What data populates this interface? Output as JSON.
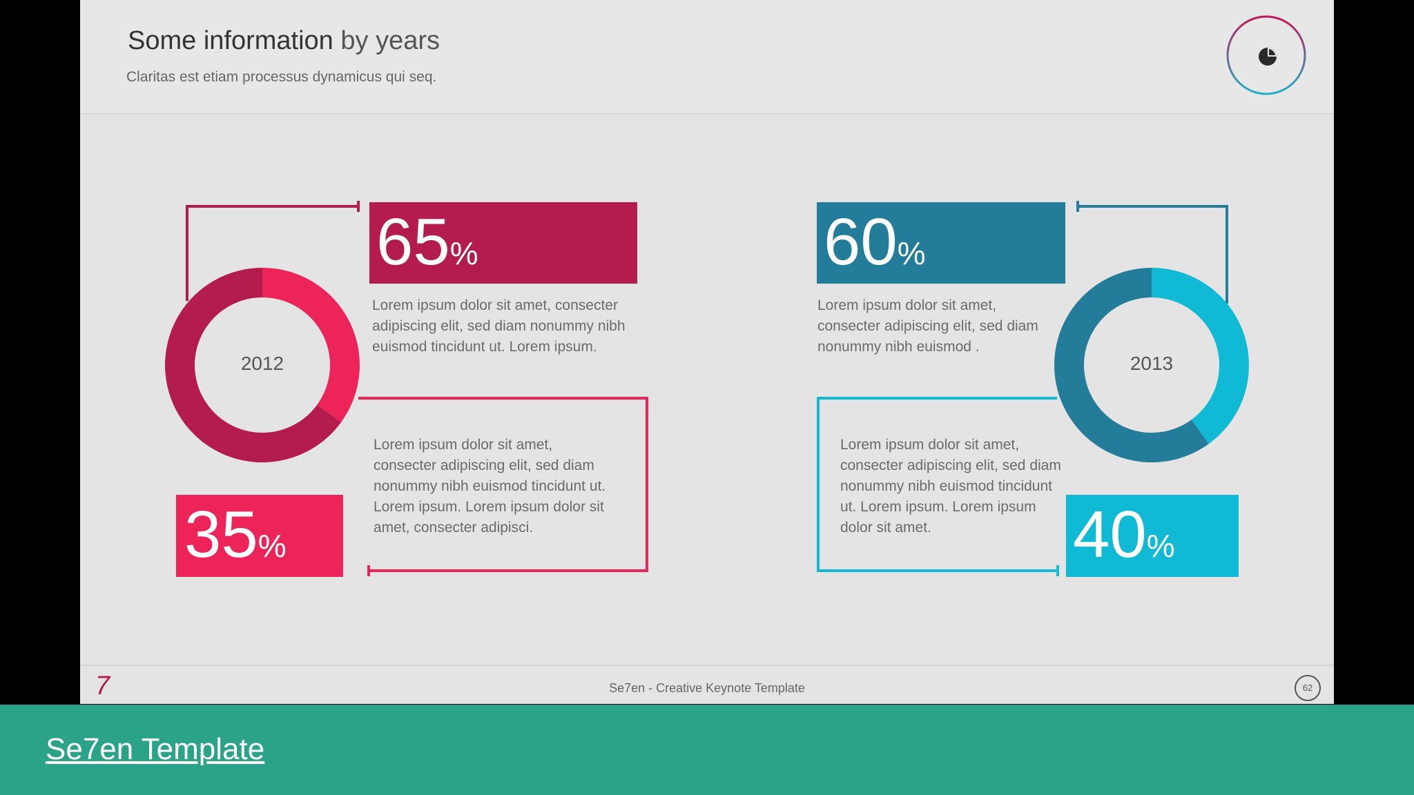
{
  "slide": {
    "title_bold": "Some information",
    "title_light": "by years",
    "subtitle": "Claritas est etiam processus dynamicus qui seq."
  },
  "left": {
    "year": "2012",
    "big_value": "65",
    "small_value": "35",
    "unit": "%",
    "text_top": "Lorem ipsum dolor sit amet, consecter adipiscing elit, sed diam nonummy nibh euismod tincidunt ut. Lorem ipsum.",
    "text_bottom": "Lorem ipsum dolor sit amet, consecter adipiscing elit, sed diam nonummy nibh euismod tincidunt ut. Lorem ipsum. Lorem ipsum dolor sit amet, consecter adipisci.",
    "colors": {
      "major": "#b31c4c",
      "minor": "#ec2459"
    }
  },
  "right": {
    "year": "2013",
    "big_value": "60",
    "small_value": "40",
    "unit": "%",
    "text_top": "Lorem ipsum dolor sit amet, consecter adipiscing elit, sed diam nonummy nibh euismod .",
    "text_bottom": "Lorem ipsum dolor sit amet, consecter adipiscing elit, sed diam nonummy nibh euismod tincidunt ut. Lorem ipsum. Lorem ipsum dolor sit amet.",
    "colors": {
      "major": "#237d9a",
      "minor": "#10b9d4"
    }
  },
  "footer": {
    "logo": "7",
    "text": "Se7en - Creative Keynote Template",
    "page": "62"
  },
  "banner": {
    "link_text": "Se7en Template"
  },
  "icons": {
    "header": "pie-chart-icon"
  },
  "chart_data": [
    {
      "type": "pie",
      "title": "2012",
      "categories": [
        "65%",
        "35%"
      ],
      "values": [
        65,
        35
      ]
    },
    {
      "type": "pie",
      "title": "2013",
      "categories": [
        "60%",
        "40%"
      ],
      "values": [
        60,
        40
      ]
    }
  ]
}
